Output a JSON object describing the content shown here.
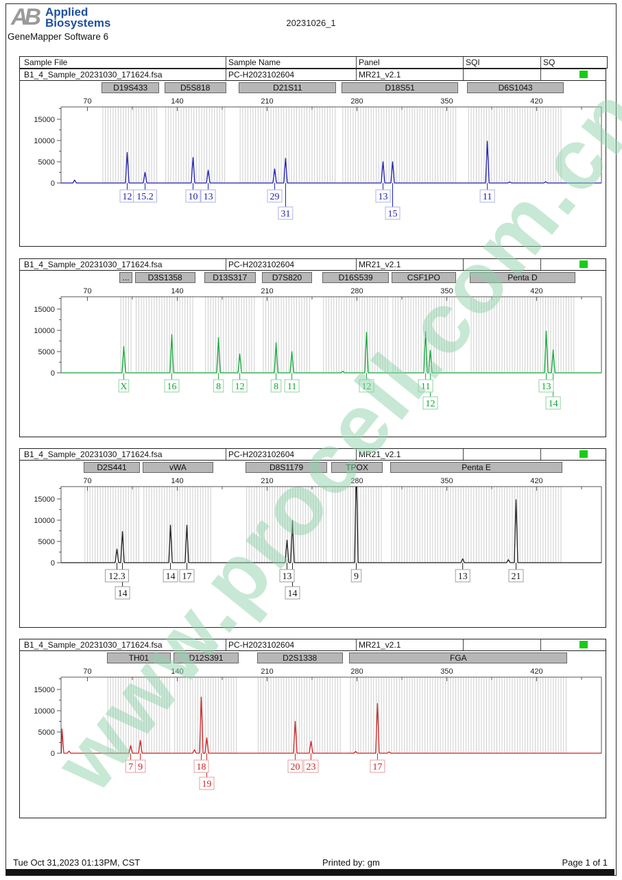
{
  "header": {
    "logo": {
      "mark": "AB",
      "line1": "Applied",
      "line2": "Biosystems"
    },
    "software": "GeneMapper Software 6",
    "title": "20231026_1"
  },
  "table_header": {
    "columns": [
      "Sample File",
      "Sample Name",
      "Panel",
      "SQI",
      "SQ"
    ]
  },
  "sample": {
    "file": "B1_4_Sample_20231030_171624.fsa",
    "name": "PC-H2023102604",
    "panel": "MR21_v2.1",
    "sqi": "",
    "sq_status_color": "#17cc17"
  },
  "watermark": {
    "text": "www.procell.com.cn",
    "color": "rgba(143,209,171,0.5)"
  },
  "footer": {
    "datetime": "Tue Oct 31,2023 01:13PM, CST",
    "printed_by": "Printed by: gm",
    "page": "Page 1 of 1"
  },
  "chart_data": {
    "type": "electropherogram",
    "x_axis": {
      "ticks": [
        70,
        140,
        210,
        280,
        350,
        420
      ],
      "minor_ticks": [
        105,
        175,
        245,
        315,
        385,
        455
      ],
      "unit": "bp"
    },
    "y_axis": {
      "ticks": [
        0,
        5000,
        10000,
        15000
      ],
      "minor_ticks": [
        2500,
        7500,
        12500,
        17500
      ],
      "max": 17900,
      "unit": "RFU"
    },
    "panels": [
      {
        "dye": "blue",
        "color": "#1c1cb0",
        "label_border": "#a9b4e0",
        "markers": [
          {
            "name": "D19S433",
            "from": 81,
            "to": 126
          },
          {
            "name": "D5S818",
            "from": 130,
            "to": 178
          },
          {
            "name": "D21S11",
            "from": 188,
            "to": 264
          },
          {
            "name": "D18S51",
            "from": 268,
            "to": 359
          },
          {
            "name": "D6S1043",
            "from": 366,
            "to": 441
          }
        ],
        "peaks": [
          {
            "bp": 60,
            "rfu": 700
          },
          {
            "bp": 101,
            "rfu": 7200
          },
          {
            "bp": 114.9,
            "rfu": 2500
          },
          {
            "bp": 152.3,
            "rfu": 6000
          },
          {
            "bp": 164.1,
            "rfu": 3000
          },
          {
            "bp": 215.9,
            "rfu": 3300
          },
          {
            "bp": 224.4,
            "rfu": 5800
          },
          {
            "bp": 300.3,
            "rfu": 5000
          },
          {
            "bp": 307.8,
            "rfu": 5000
          },
          {
            "bp": 381.6,
            "rfu": 9800
          },
          {
            "bp": 399,
            "rfu": 250
          },
          {
            "bp": 427,
            "rfu": 300
          }
        ],
        "allele_labels": [
          {
            "text": "12",
            "bp": 101,
            "row": 0
          },
          {
            "text": "15.2",
            "bp": 114.9,
            "row": 0
          },
          {
            "text": "10",
            "bp": 152.3,
            "row": 0
          },
          {
            "text": "13",
            "bp": 164.1,
            "row": 0
          },
          {
            "text": "29",
            "bp": 215.9,
            "row": 0
          },
          {
            "text": "31",
            "bp": 224.4,
            "row": 1
          },
          {
            "text": "13",
            "bp": 300.3,
            "row": 0
          },
          {
            "text": "15",
            "bp": 307.8,
            "row": 1
          },
          {
            "text": "11",
            "bp": 381.6,
            "row": 0
          }
        ]
      },
      {
        "dye": "green",
        "color": "#10a737",
        "label_border": "#92d2a4",
        "markers": [
          {
            "name": "...",
            "from": 95,
            "to": 105
          },
          {
            "name": "D3S1358",
            "from": 107,
            "to": 154
          },
          {
            "name": "D13S317",
            "from": 161,
            "to": 201
          },
          {
            "name": "D7S820",
            "from": 206,
            "to": 245
          },
          {
            "name": "D16S539",
            "from": 253,
            "to": 305
          },
          {
            "name": "CSF1PO",
            "from": 307,
            "to": 357
          },
          {
            "name": "Penta D",
            "from": 368,
            "to": 450
          }
        ],
        "peaks": [
          {
            "bp": 98.3,
            "rfu": 6200
          },
          {
            "bp": 135.7,
            "rfu": 9000
          },
          {
            "bp": 172.1,
            "rfu": 8300
          },
          {
            "bp": 188.7,
            "rfu": 4400
          },
          {
            "bp": 217,
            "rfu": 7100
          },
          {
            "bp": 229.3,
            "rfu": 5000
          },
          {
            "bp": 269,
            "rfu": 350
          },
          {
            "bp": 287.5,
            "rfu": 9500
          },
          {
            "bp": 333.5,
            "rfu": 9700
          },
          {
            "bp": 337.2,
            "rfu": 5300
          },
          {
            "bp": 427.5,
            "rfu": 9800
          },
          {
            "bp": 432.9,
            "rfu": 5400
          }
        ],
        "allele_labels": [
          {
            "text": "X",
            "bp": 98.3,
            "row": 0
          },
          {
            "text": "16",
            "bp": 135.7,
            "row": 0
          },
          {
            "text": "8",
            "bp": 172.1,
            "row": 0
          },
          {
            "text": "12",
            "bp": 188.7,
            "row": 0
          },
          {
            "text": "8",
            "bp": 217,
            "row": 0
          },
          {
            "text": "11",
            "bp": 229.3,
            "row": 0
          },
          {
            "text": "12",
            "bp": 287.5,
            "row": 0
          },
          {
            "text": "11",
            "bp": 333.5,
            "row": 0
          },
          {
            "text": "12",
            "bp": 337.2,
            "row": 1
          },
          {
            "text": "13",
            "bp": 427.5,
            "row": 0
          },
          {
            "text": "14",
            "bp": 432.9,
            "row": 1
          }
        ]
      },
      {
        "dye": "black",
        "color": "#1c1c1c",
        "label_border": "#9e9e9e",
        "markers": [
          {
            "name": "D2S441",
            "from": 67,
            "to": 111
          },
          {
            "name": "vWA",
            "from": 113,
            "to": 168
          },
          {
            "name": "D8S1179",
            "from": 193,
            "to": 257
          },
          {
            "name": "TPOX",
            "from": 260,
            "to": 300
          },
          {
            "name": "Penta E",
            "from": 306,
            "to": 440
          }
        ],
        "peaks": [
          {
            "bp": 93,
            "rfu": 3200
          },
          {
            "bp": 97.3,
            "rfu": 7300
          },
          {
            "bp": 134.7,
            "rfu": 8800
          },
          {
            "bp": 147.5,
            "rfu": 8800
          },
          {
            "bp": 225.5,
            "rfu": 5300
          },
          {
            "bp": 229.8,
            "rfu": 9900
          },
          {
            "bp": 279.5,
            "rfu": 19500
          },
          {
            "bp": 362.4,
            "rfu": 900
          },
          {
            "bp": 398,
            "rfu": 700
          },
          {
            "bp": 404,
            "rfu": 14800
          }
        ],
        "allele_labels": [
          {
            "text": "12.3",
            "bp": 93,
            "row": 0
          },
          {
            "text": "14",
            "bp": 97.3,
            "row": 1
          },
          {
            "text": "14",
            "bp": 134.7,
            "row": 0
          },
          {
            "text": "17",
            "bp": 147.5,
            "row": 0
          },
          {
            "text": "13",
            "bp": 225.5,
            "row": 0
          },
          {
            "text": "14",
            "bp": 229.8,
            "row": 1
          },
          {
            "text": "9",
            "bp": 279.5,
            "row": 0
          },
          {
            "text": "13",
            "bp": 362.4,
            "row": 0
          },
          {
            "text": "21",
            "bp": 404,
            "row": 0
          }
        ]
      },
      {
        "dye": "red",
        "color": "#d01f1f",
        "label_border": "#e0a0a0",
        "markers": [
          {
            "name": "TH01",
            "from": 85,
            "to": 135
          },
          {
            "name": "D12S391",
            "from": 137,
            "to": 188
          },
          {
            "name": "D2S1338",
            "from": 202,
            "to": 269
          },
          {
            "name": "FGA",
            "from": 274,
            "to": 444
          }
        ],
        "peaks": [
          {
            "bp": 50.2,
            "rfu": 5700
          },
          {
            "bp": 55.6,
            "rfu": 500
          },
          {
            "bp": 103.7,
            "rfu": 1800
          },
          {
            "bp": 111.2,
            "rfu": 3000
          },
          {
            "bp": 153.4,
            "rfu": 800
          },
          {
            "bp": 158.7,
            "rfu": 13200
          },
          {
            "bp": 163,
            "rfu": 3600
          },
          {
            "bp": 231.9,
            "rfu": 7500
          },
          {
            "bp": 244.2,
            "rfu": 2800
          },
          {
            "bp": 279,
            "rfu": 400
          },
          {
            "bp": 296,
            "rfu": 11700
          },
          {
            "bp": 305,
            "rfu": 300
          }
        ],
        "allele_labels": [
          {
            "text": "7",
            "bp": 103.7,
            "row": 0
          },
          {
            "text": "9",
            "bp": 111.2,
            "row": 0
          },
          {
            "text": "18",
            "bp": 158.7,
            "row": 0
          },
          {
            "text": "19",
            "bp": 163,
            "row": 1
          },
          {
            "text": "20",
            "bp": 231.9,
            "row": 0
          },
          {
            "text": "23",
            "bp": 244.2,
            "row": 0
          },
          {
            "text": "17",
            "bp": 296,
            "row": 0
          }
        ]
      }
    ]
  }
}
